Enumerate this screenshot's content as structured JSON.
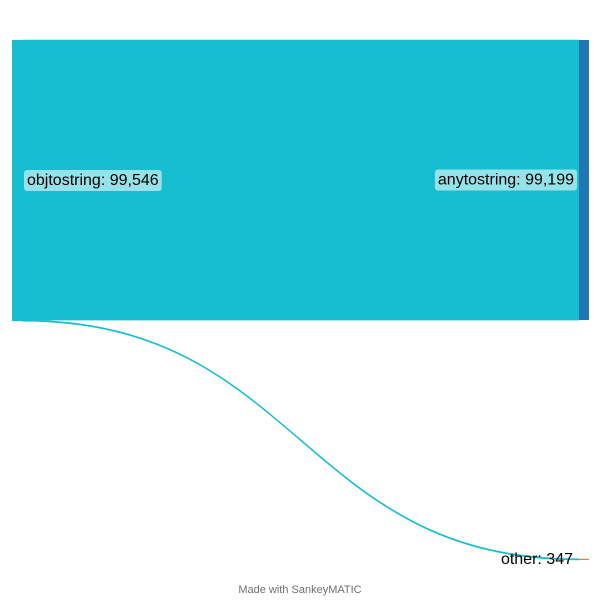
{
  "colors": {
    "source_node": "#17becf",
    "anytostring_node": "#1f77b4",
    "other_node": "#ff7f0e",
    "flow": "#17becf",
    "label_background": "#ffffff"
  },
  "chart_data": {
    "type": "sankey",
    "nodes": [
      {
        "id": "objtostring",
        "label": "objtostring",
        "value_text": "99,546",
        "value": 99546
      },
      {
        "id": "anytostring",
        "label": "anytostring",
        "value_text": "99,199",
        "value": 99199
      },
      {
        "id": "other",
        "label": "other",
        "value_text": "347",
        "value": 347
      }
    ],
    "links": [
      {
        "source": "objtostring",
        "target": "anytostring",
        "value": 99199
      },
      {
        "source": "objtostring",
        "target": "other",
        "value": 347
      }
    ]
  },
  "footer": {
    "credit": "Made with SankeyMATIC"
  }
}
